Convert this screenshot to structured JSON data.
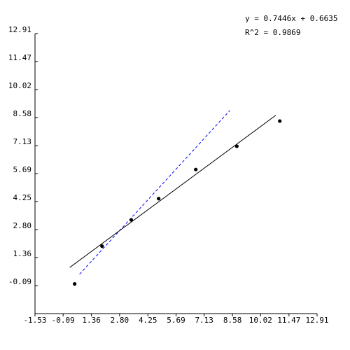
{
  "chart_data": {
    "type": "scatter",
    "title": "",
    "xlabel": "",
    "ylabel": "",
    "xlim": [
      -1.53,
      12.91
    ],
    "ylim": [
      -1.53,
      12.91
    ],
    "x_ticks": [
      "-1.53",
      "-0.09",
      "1.36",
      "2.80",
      "4.25",
      "5.69",
      "7.13",
      "8.58",
      "10.02",
      "11.47",
      "12.91"
    ],
    "y_ticks": [
      "-0.09",
      "1.36",
      "2.80",
      "4.25",
      "5.69",
      "7.13",
      "8.58",
      "10.02",
      "11.47",
      "12.91"
    ],
    "grid": false,
    "points": [
      {
        "x": 0.5,
        "y": 0.0
      },
      {
        "x": 1.9,
        "y": 1.95
      },
      {
        "x": 3.4,
        "y": 3.3
      },
      {
        "x": 4.8,
        "y": 4.4
      },
      {
        "x": 6.7,
        "y": 5.9
      },
      {
        "x": 8.8,
        "y": 7.1
      },
      {
        "x": 11.0,
        "y": 8.4
      }
    ],
    "fit_line": {
      "x": [
        0.25,
        10.8
      ],
      "y": [
        0.85,
        8.7
      ],
      "color": "#000000",
      "style": "solid"
    },
    "reference_line": {
      "x": [
        0.75,
        8.45
      ],
      "y": [
        0.5,
        8.95
      ],
      "color": "#0000ff",
      "style": "dashed"
    },
    "annotations": {
      "equation": "y = 0.7446x + 0.6635",
      "r_squared": "R^2 = 0.9869"
    },
    "colors": {
      "points": "#000000",
      "axes": "#000000"
    }
  }
}
